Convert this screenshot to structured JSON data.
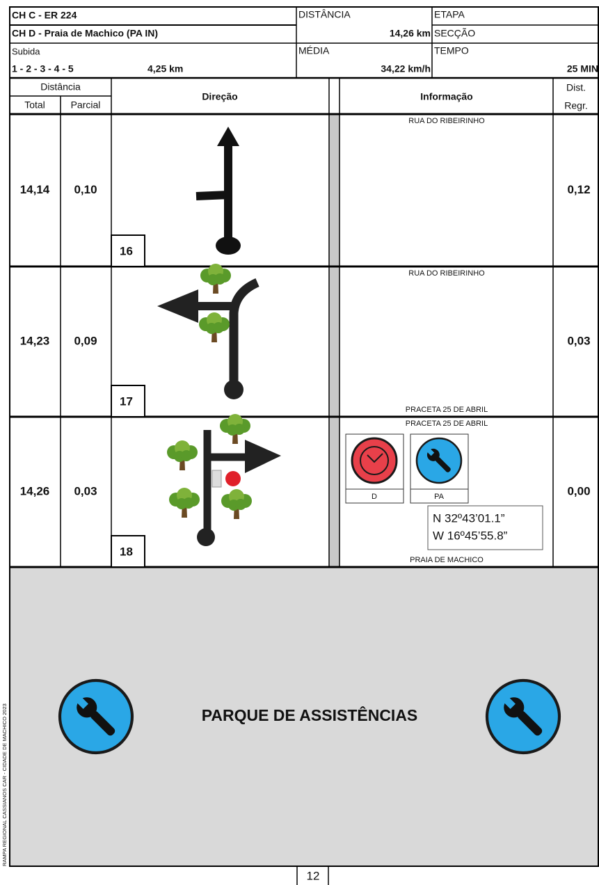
{
  "header": {
    "ch_c": "CH C - ER 224",
    "ch_d": "CH D - Praia de Machico (PA IN)",
    "climb_label": "Subida",
    "sequence": "1 - 2 - 3 - 4 - 5",
    "sequence_distance": "4,25 km",
    "distance_label": "DISTÂNCIA",
    "distance": "14,26 km",
    "average_label": "MÉDIA",
    "average": "34,22 km/h",
    "stage_label": "ETAPA",
    "section_label": "SECÇÃO",
    "time_label": "TEMPO",
    "time": "25 MIN"
  },
  "table": {
    "distance_header": "Distância",
    "total_header": "Total",
    "partial_header": "Parcial",
    "direction_header": "Direção",
    "info_header": "Informação",
    "regr_header_1": "Dist.",
    "regr_header_2": "Regr.",
    "rows": [
      {
        "number": "16",
        "total": "14,14",
        "partial": "0,10",
        "regr": "0,12",
        "info_top": "RUA DO RIBEIRINHO"
      },
      {
        "number": "17",
        "total": "14,23",
        "partial": "0,09",
        "regr": "0,03",
        "info_top": "RUA DO RIBEIRINHO",
        "info_bottom": "PRACETA 25 DE ABRIL"
      },
      {
        "number": "18",
        "total": "14,26",
        "partial": "0,03",
        "regr": "0,00",
        "info_top": "PRACETA 25 DE ABRIL",
        "info_bottom": "PRAIA DE MACHICO",
        "icon_1": "D",
        "icon_2": "PA",
        "lat": "N   32º43’01.1”",
        "lon": "W   16º45’55.8”"
      }
    ]
  },
  "footer": {
    "banner": "PARQUE DE ASSISTÊNCIAS",
    "page": "12",
    "side_text": "RAMPA REGIONAL CASSIANOS CAR - CIDADE DE MACHICO 2023"
  }
}
